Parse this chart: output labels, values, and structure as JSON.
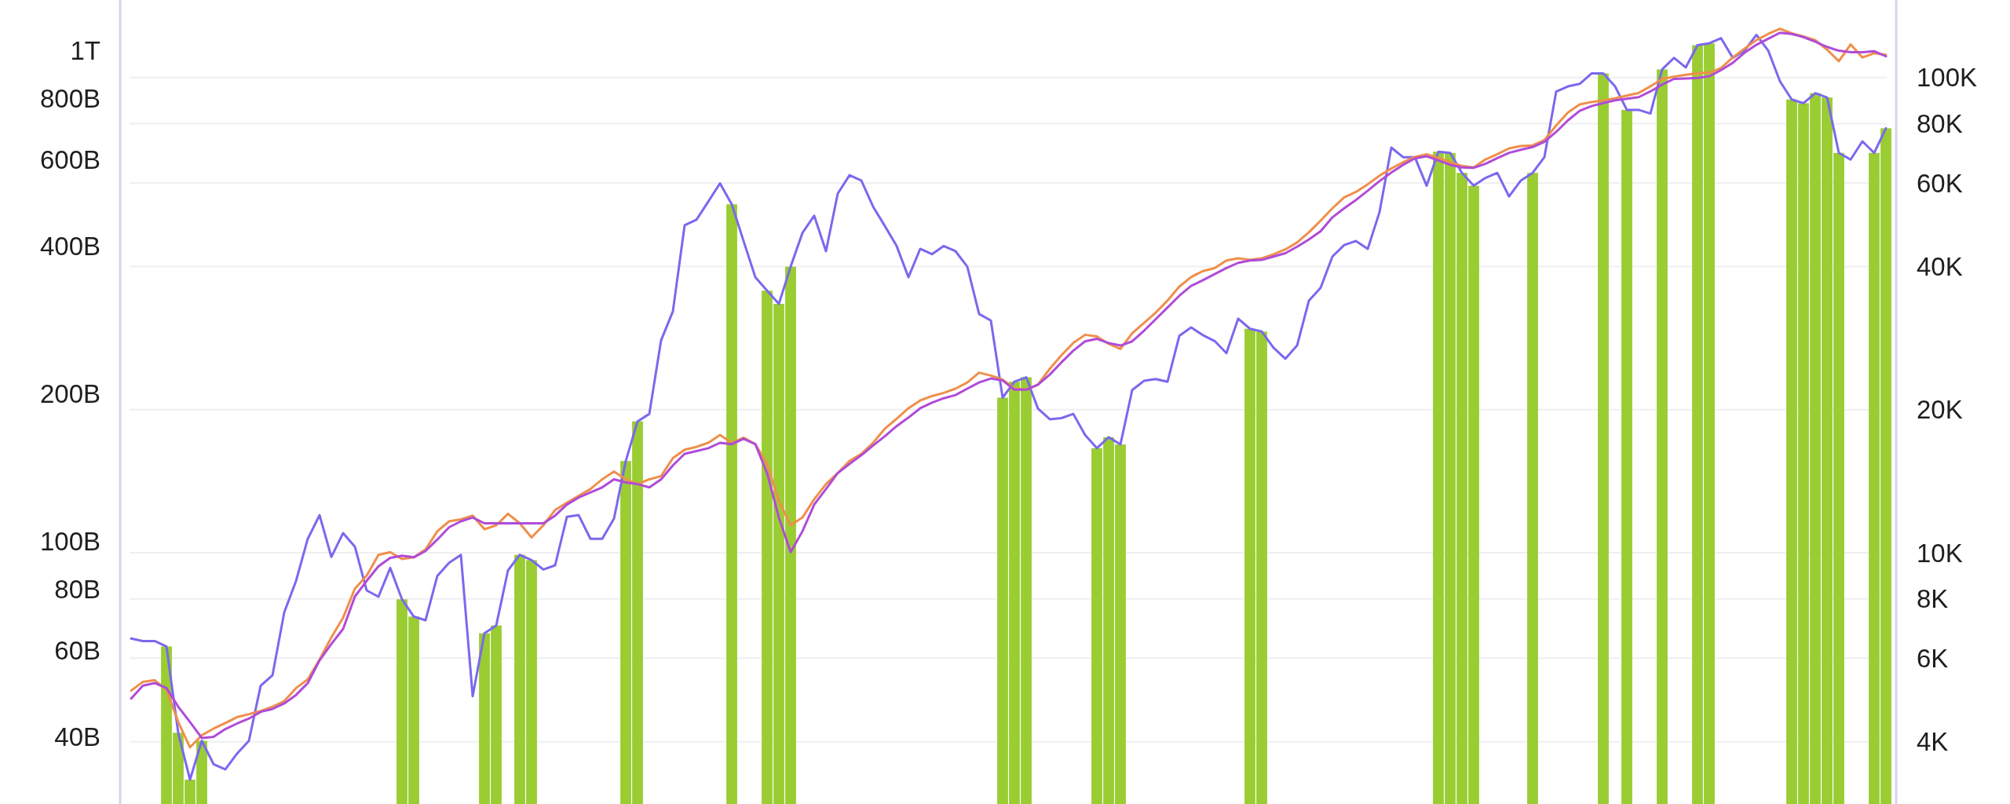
{
  "chart_data": [
    {
      "type": "line",
      "categories": [
        null,
        null,
        null,
        null,
        null,
        null,
        null,
        null,
        null,
        null,
        null,
        null,
        null,
        null,
        null,
        null,
        null,
        null,
        null,
        null,
        null,
        null,
        null,
        null,
        null,
        null,
        null,
        null,
        null,
        null,
        null,
        null,
        null,
        null,
        null,
        null,
        null,
        null,
        null,
        null,
        null,
        null,
        null,
        null,
        null,
        null,
        null,
        null,
        null,
        null,
        null,
        null,
        null,
        null,
        null,
        null,
        null,
        null,
        null,
        null,
        null,
        null,
        null,
        null,
        null,
        null,
        null,
        null,
        null,
        null,
        null,
        null,
        null,
        null,
        null,
        null,
        null,
        null,
        null,
        null,
        null,
        null,
        null,
        null,
        null,
        null,
        null,
        null,
        null,
        null,
        null,
        null,
        null,
        null,
        null,
        null,
        null,
        null,
        null,
        null,
        null,
        null,
        null,
        null,
        null,
        null,
        null,
        null,
        null,
        null,
        null,
        null,
        null,
        null,
        null,
        null,
        null,
        null,
        null,
        null,
        null,
        null,
        null,
        null,
        null,
        null,
        null,
        null,
        null,
        null,
        null,
        null,
        null,
        null,
        null,
        null,
        null,
        null,
        null,
        null,
        null,
        null,
        null,
        null,
        null,
        null,
        null,
        null,
        null,
        null
      ],
      "series": [
        {
          "color": "#ef8f4a",
          "values": [
            49700000000.0,
            51800000000.0,
            52200000000.0,
            49900000000.0,
            42900000000.0,
            38100000000.0,
            40300000000.0,
            41600000000.0,
            42700000000.0,
            43900000000.0,
            44500000000.0,
            45200000000.0,
            46100000000.0,
            47300000000.0,
            50300000000.0,
            52400000000.0,
            57500000000.0,
            63800000000.0,
            70000000000.0,
            80200000000.0,
            85200000000.0,
            94000000000.0,
            95200000000.0,
            92200000000.0,
            92900000000.0,
            96400000000.0,
            105000000000.0,
            110000000000.0,
            111000000000.0,
            113000000000.0,
            106000000000.0,
            108000000000.0,
            114000000000.0,
            109000000000.0,
            102000000000.0,
            108000000000.0,
            116000000000.0,
            120000000000.0,
            124000000000.0,
            128000000000.0,
            134000000000.0,
            139000000000.0,
            134000000000.0,
            131000000000.0,
            134000000000.0,
            136000000000.0,
            148000000000.0,
            154000000000.0,
            156000000000.0,
            159000000000.0,
            165000000000.0,
            159000000000.0,
            163000000000.0,
            158000000000.0,
            144000000000.0,
            121000000000.0,
            108000000000.0,
            112000000000.0,
            122000000000.0,
            131000000000.0,
            138000000000.0,
            146000000000.0,
            151000000000.0,
            159000000000.0,
            170000000000.0,
            178000000000.0,
            187000000000.0,
            194000000000.0,
            198000000000.0,
            201000000000.0,
            205000000000.0,
            211000000000.0,
            221000000000.0,
            218000000000.0,
            214000000000.0,
            205000000000.0,
            204000000000.0,
            209000000000.0,
            225000000000.0,
            240000000000.0,
            254000000000.0,
            264000000000.0,
            262000000000.0,
            253000000000.0,
            247000000000.0,
            266000000000.0,
            279000000000.0,
            293000000000.0,
            310000000000.0,
            331000000000.0,
            346000000000.0,
            356000000000.0,
            361000000000.0,
            374000000000.0,
            378000000000.0,
            375000000000.0,
            378000000000.0,
            385000000000.0,
            394000000000.0,
            407000000000.0,
            427000000000.0,
            451000000000.0,
            478000000000.0,
            503000000000.0,
            516000000000.0,
            535000000000.0,
            557000000000.0,
            576000000000.0,
            593000000000.0,
            608000000000.0,
            616000000000.0,
            605000000000.0,
            593000000000.0,
            583000000000.0,
            579000000000.0,
            601000000000.0,
            616000000000.0,
            633000000000.0,
            640000000000.0,
            642000000000.0,
            658000000000.0,
            705000000000.0,
            749000000000.0,
            778000000000.0,
            787000000000.0,
            793000000000.0,
            801000000000.0,
            811000000000.0,
            821000000000.0,
            847000000000.0,
            877000000000.0,
            886000000000.0,
            894000000000.0,
            901000000000.0,
            903000000000.0,
            923000000000.0,
            970000000000.0,
            1011000000000.0,
            1052000000000.0,
            1083000000000.0,
            1110000000000.0,
            1086000000000.0,
            1070000000000.0,
            1052000000000.0,
            1006000000000.0,
            953000000000.0,
            1031000000000.0,
            970000000000.0,
            989000000000.0,
            982000000000.0
          ]
        },
        {
          "color": "#b04bd8",
          "values": [
            47900000000.0,
            50900000000.0,
            51500000000.0,
            50300000000.0,
            46100000000.0,
            42900000000.0,
            39800000000.0,
            40000000000.0,
            41500000000.0,
            42600000000.0,
            43600000000.0,
            45000000000.0,
            45600000000.0,
            46800000000.0,
            48700000000.0,
            51500000000.0,
            57300000000.0,
            61900000000.0,
            66400000000.0,
            77300000000.0,
            83200000000.0,
            89100000000.0,
            92700000000.0,
            93600000000.0,
            92900000000.0,
            95700000000.0,
            101000000000.0,
            107000000000.0,
            110000000000.0,
            112000000000.0,
            109000000000.0,
            109000000000.0,
            109000000000.0,
            109000000000.0,
            109000000000.0,
            109000000000.0,
            113000000000.0,
            119000000000.0,
            123000000000.0,
            126000000000.0,
            129000000000.0,
            134000000000.0,
            132000000000.0,
            131000000000.0,
            129000000000.0,
            134000000000.0,
            143000000000.0,
            151000000000.0,
            153000000000.0,
            155000000000.0,
            159000000000.0,
            158000000000.0,
            162000000000.0,
            158000000000.0,
            138000000000.0,
            112000000000.0,
            95200000000.0,
            105000000000.0,
            119000000000.0,
            128000000000.0,
            138000000000.0,
            144000000000.0,
            150000000000.0,
            157000000000.0,
            164000000000.0,
            172000000000.0,
            179000000000.0,
            187000000000.0,
            192000000000.0,
            196000000000.0,
            199000000000.0,
            205000000000.0,
            211000000000.0,
            215000000000.0,
            213000000000.0,
            204000000000.0,
            204000000000.0,
            209000000000.0,
            219000000000.0,
            232000000000.0,
            245000000000.0,
            256000000000.0,
            259000000000.0,
            254000000000.0,
            251000000000.0,
            256000000000.0,
            269000000000.0,
            284000000000.0,
            300000000000.0,
            317000000000.0,
            332000000000.0,
            341000000000.0,
            351000000000.0,
            361000000000.0,
            370000000000.0,
            374000000000.0,
            375000000000.0,
            381000000000.0,
            387000000000.0,
            399000000000.0,
            413000000000.0,
            429000000000.0,
            458000000000.0,
            478000000000.0,
            497000000000.0,
            519000000000.0,
            543000000000.0,
            565000000000.0,
            586000000000.0,
            604000000000.0,
            610000000000.0,
            598000000000.0,
            586000000000.0,
            579000000000.0,
            578000000000.0,
            589000000000.0,
            605000000000.0,
            620000000000.0,
            629000000000.0,
            637000000000.0,
            653000000000.0,
            684000000000.0,
            722000000000.0,
            755000000000.0,
            772000000000.0,
            783000000000.0,
            793000000000.0,
            799000000000.0,
            805000000000.0,
            827000000000.0,
            854000000000.0,
            877000000000.0,
            879000000000.0,
            881000000000.0,
            888000000000.0,
            914000000000.0,
            946000000000.0,
            992000000000.0,
            1029000000000.0,
            1059000000000.0,
            1089000000000.0,
            1083000000000.0,
            1067000000000.0,
            1044000000000.0,
            1019000000000.0,
            1001000000000.0,
            994000000000.0,
            994000000000.0,
            999000000000.0,
            975000000000.0
          ]
        }
      ],
      "ylim": [
        29200000000.0,
        1270000000000.0
      ],
      "yticks": [
        {
          "value": 40000000000.0,
          "label": "40B"
        },
        {
          "value": 60000000000.0,
          "label": "60B"
        },
        {
          "value": 80000000000.0,
          "label": "80B"
        },
        {
          "value": 100000000000.0,
          "label": "100B"
        },
        {
          "value": 200000000000.0,
          "label": "200B"
        },
        {
          "value": 400000000000.0,
          "label": "400B"
        },
        {
          "value": 600000000000.0,
          "label": "600B"
        },
        {
          "value": 800000000000.0,
          "label": "800B"
        },
        {
          "value": 1000000000000.0,
          "label": "1T"
        }
      ],
      "log": true,
      "tick_labels": "y"
    },
    {
      "type": "line",
      "categories": [
        null,
        null,
        null,
        null,
        null,
        null,
        null,
        null,
        null,
        null,
        null,
        null,
        null,
        null,
        null,
        null,
        null,
        null,
        null,
        null,
        null,
        null,
        null,
        null,
        null,
        null,
        null,
        null,
        null,
        null,
        null,
        null,
        null,
        null,
        null,
        null,
        null,
        null,
        null,
        null,
        null,
        null,
        null,
        null,
        null,
        null,
        null,
        null,
        null,
        null,
        null,
        null,
        null,
        null,
        null,
        null,
        null,
        null,
        null,
        null,
        null,
        null,
        null,
        null,
        null,
        null,
        null,
        null,
        null,
        null,
        null,
        null,
        null,
        null,
        null,
        null,
        null,
        null,
        null,
        null,
        null,
        null,
        null,
        null,
        null,
        null,
        null,
        null,
        null,
        null,
        null,
        null,
        null,
        null,
        null,
        null,
        null,
        null,
        null,
        null,
        null,
        null,
        null,
        null,
        null,
        null,
        null,
        null,
        null,
        null,
        null,
        null,
        null,
        null,
        null,
        null,
        null,
        null,
        null,
        null,
        null,
        null,
        null,
        null,
        null,
        null,
        null,
        null,
        null,
        null,
        null,
        null,
        null,
        null,
        null,
        null,
        null,
        null,
        null,
        null,
        null,
        null,
        null,
        null,
        null,
        null,
        null,
        null,
        null,
        null
      ],
      "series": [
        {
          "type": "bar",
          "color": "#9acd32",
          "values": [
            null,
            null,
            null,
            6350,
            4180,
            3330,
            4020,
            null,
            null,
            null,
            null,
            null,
            null,
            null,
            null,
            null,
            null,
            null,
            null,
            null,
            null,
            null,
            null,
            7980,
            7340,
            null,
            null,
            null,
            null,
            null,
            6770,
            7030,
            null,
            9900,
            9650,
            null,
            null,
            null,
            null,
            null,
            null,
            null,
            15600,
            18900,
            null,
            null,
            null,
            null,
            null,
            null,
            null,
            54100,
            null,
            null,
            35600,
            33400,
            40000,
            null,
            null,
            null,
            null,
            null,
            null,
            null,
            null,
            null,
            null,
            null,
            null,
            null,
            null,
            null,
            null,
            null,
            21200,
            22900,
            23400,
            null,
            null,
            null,
            null,
            null,
            16600,
            17500,
            16900,
            null,
            null,
            null,
            null,
            null,
            null,
            null,
            null,
            null,
            null,
            29600,
            29200,
            null,
            null,
            null,
            null,
            null,
            null,
            null,
            null,
            null,
            null,
            null,
            null,
            null,
            null,
            69800,
            69400,
            63000,
            59200,
            null,
            null,
            null,
            null,
            63000,
            null,
            null,
            null,
            null,
            null,
            102000,
            null,
            85500,
            null,
            null,
            104000,
            null,
            null,
            117000,
            118000,
            null,
            null,
            null,
            null,
            null,
            null,
            89900,
            88300,
            92700,
            90800,
            69400,
            null,
            null,
            69400,
            78200
          ]
        },
        {
          "color": "#7b68ee",
          "values": [
            6600,
            6520,
            6520,
            6350,
            4180,
            3330,
            4020,
            3590,
            3500,
            3780,
            4020,
            5250,
            5520,
            7490,
            8720,
            10700,
            12000,
            9800,
            11000,
            10300,
            8330,
            8080,
            9290,
            7980,
            7340,
            7210,
            8940,
            9530,
            9900,
            4990,
            6770,
            7030,
            9180,
            9900,
            9650,
            9220,
            9410,
            11900,
            12000,
            10700,
            10700,
            11800,
            15600,
            18900,
            19600,
            28000,
            32200,
            48900,
            50200,
            54800,
            59900,
            54100,
            45300,
            38000,
            35600,
            33400,
            40000,
            47100,
            51200,
            43100,
            57000,
            62300,
            60700,
            53500,
            48700,
            44200,
            38000,
            43600,
            42500,
            44200,
            43100,
            40000,
            31800,
            30800,
            21200,
            22900,
            23400,
            20100,
            19100,
            19200,
            19600,
            17700,
            16600,
            17500,
            16900,
            22000,
            23000,
            23200,
            22900,
            28600,
            29800,
            28700,
            27900,
            26300,
            31100,
            29600,
            29200,
            27000,
            25600,
            27300,
            33900,
            36100,
            42000,
            44400,
            45300,
            43600,
            52100,
            71200,
            68000,
            68000,
            59200,
            69800,
            69400,
            63000,
            59200,
            61500,
            63000,
            56200,
            60700,
            63000,
            68000,
            93400,
            95800,
            97000,
            102000,
            102000,
            95800,
            85500,
            85500,
            84000,
            104000,
            110000,
            105000,
            117000,
            118000,
            121000,
            110000,
            114000,
            123000,
            114000,
            98200,
            89900,
            88300,
            92700,
            90800,
            69400,
            67200,
            73400,
            69400,
            78200
          ]
        }
      ],
      "ylim": [
        2960,
        145600
      ],
      "yticks": [
        {
          "value": 4000,
          "label": "4K"
        },
        {
          "value": 6000,
          "label": "6K"
        },
        {
          "value": 8000,
          "label": "8K"
        },
        {
          "value": 10000,
          "label": "10K"
        },
        {
          "value": 20000,
          "label": "20K"
        },
        {
          "value": 40000,
          "label": "40K"
        },
        {
          "value": 60000,
          "label": "60K"
        },
        {
          "value": 80000,
          "label": "80K"
        },
        {
          "value": 100000,
          "label": "100K"
        }
      ],
      "log": true,
      "grid": "y",
      "tick_labels": "y"
    }
  ]
}
